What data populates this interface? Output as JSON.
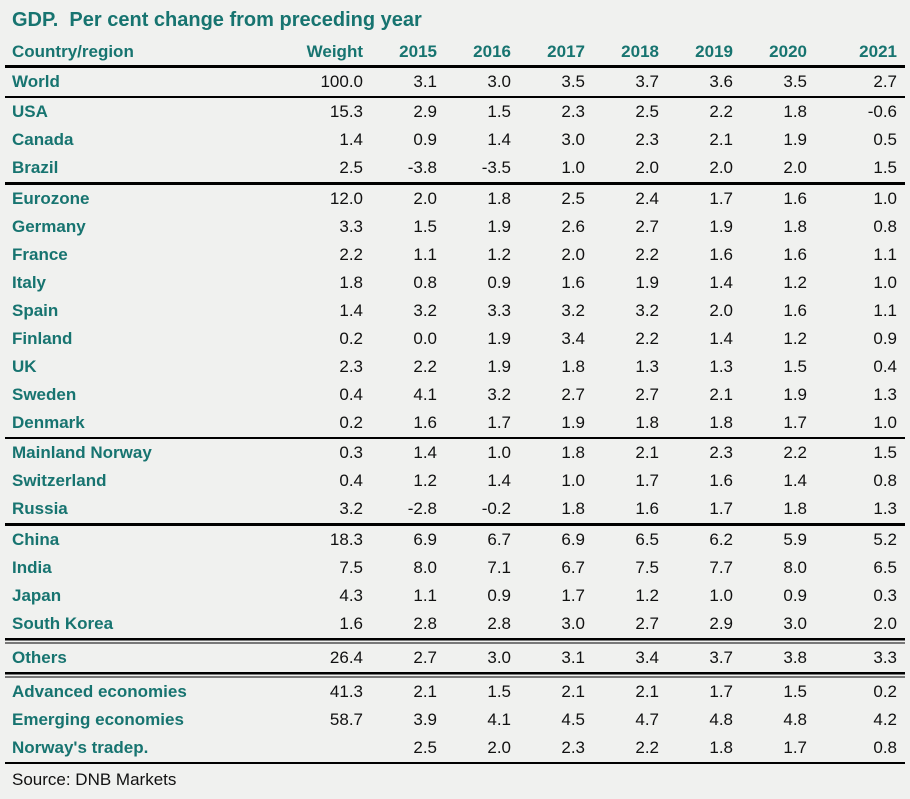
{
  "title": "GDP.  Per cent change from preceding year",
  "source": "Source: DNB Markets",
  "colors": {
    "teal": "#177470",
    "background": "#f0f1ef",
    "number_text": "#111111",
    "rule": "#000000"
  },
  "chart_data": {
    "type": "table",
    "title": "GDP. Per cent change from preceding year",
    "columns": [
      "Country/region",
      "Weight",
      "2015",
      "2016",
      "2017",
      "2018",
      "2019",
      "2020",
      "2021"
    ],
    "rows": [
      {
        "label": "World",
        "indent": 0,
        "rule_above": "thick",
        "values": [
          "100.0",
          "3.1",
          "3.0",
          "3.5",
          "3.7",
          "3.6",
          "3.5",
          "2.7"
        ]
      },
      {
        "label": "USA",
        "indent": 0,
        "rule_above": "thick",
        "values": [
          "15.3",
          "2.9",
          "1.5",
          "2.3",
          "2.5",
          "2.2",
          "1.8",
          "-0.6"
        ]
      },
      {
        "label": "Canada",
        "indent": 0,
        "rule_above": "none",
        "values": [
          "1.4",
          "0.9",
          "1.4",
          "3.0",
          "2.3",
          "2.1",
          "1.9",
          "0.5"
        ]
      },
      {
        "label": "Brazil",
        "indent": 0,
        "rule_above": "none",
        "values": [
          "2.5",
          "-3.8",
          "-3.5",
          "1.0",
          "2.0",
          "2.0",
          "2.0",
          "1.5"
        ]
      },
      {
        "label": "Eurozone",
        "indent": 0,
        "rule_above": "thick",
        "values": [
          "12.0",
          "2.0",
          "1.8",
          "2.5",
          "2.4",
          "1.7",
          "1.6",
          "1.0"
        ]
      },
      {
        "label": "Germany",
        "indent": 2,
        "rule_above": "none",
        "values": [
          "3.3",
          "1.5",
          "1.9",
          "2.6",
          "2.7",
          "1.9",
          "1.8",
          "0.8"
        ]
      },
      {
        "label": "France",
        "indent": 2,
        "rule_above": "none",
        "values": [
          "2.2",
          "1.1",
          "1.2",
          "2.0",
          "2.2",
          "1.6",
          "1.6",
          "1.1"
        ]
      },
      {
        "label": "Italy",
        "indent": 2,
        "rule_above": "none",
        "values": [
          "1.8",
          "0.8",
          "0.9",
          "1.6",
          "1.9",
          "1.4",
          "1.2",
          "1.0"
        ]
      },
      {
        "label": "Spain",
        "indent": 2,
        "rule_above": "none",
        "values": [
          "1.4",
          "3.2",
          "3.3",
          "3.2",
          "3.2",
          "2.0",
          "1.6",
          "1.1"
        ]
      },
      {
        "label": "Finland",
        "indent": 2,
        "rule_above": "none",
        "values": [
          "0.2",
          "0.0",
          "1.9",
          "3.4",
          "2.2",
          "1.4",
          "1.2",
          "0.9"
        ]
      },
      {
        "label": "UK",
        "indent": 0,
        "rule_above": "none",
        "values": [
          "2.3",
          "2.2",
          "1.9",
          "1.8",
          "1.3",
          "1.3",
          "1.5",
          "0.4"
        ]
      },
      {
        "label": "Sweden",
        "indent": 0,
        "rule_above": "none",
        "values": [
          "0.4",
          "4.1",
          "3.2",
          "2.7",
          "2.7",
          "2.1",
          "1.9",
          "1.3"
        ]
      },
      {
        "label": "Denmark",
        "indent": 0,
        "rule_above": "none",
        "values": [
          "0.2",
          "1.6",
          "1.7",
          "1.9",
          "1.8",
          "1.8",
          "1.7",
          "1.0"
        ]
      },
      {
        "label": "Mainland Norway",
        "indent": 0,
        "rule_above": "thick",
        "values": [
          "0.3",
          "1.4",
          "1.0",
          "1.8",
          "2.1",
          "2.3",
          "2.2",
          "1.5"
        ]
      },
      {
        "label": "Switzerland",
        "indent": 1,
        "rule_above": "none",
        "values": [
          "0.4",
          "1.2",
          "1.4",
          "1.0",
          "1.7",
          "1.6",
          "1.4",
          "0.8"
        ]
      },
      {
        "label": "Russia",
        "indent": 1,
        "rule_above": "none",
        "values": [
          "3.2",
          "-2.8",
          "-0.2",
          "1.8",
          "1.6",
          "1.7",
          "1.8",
          "1.3"
        ]
      },
      {
        "label": "China",
        "indent": 0,
        "rule_above": "thick",
        "values": [
          "18.3",
          "6.9",
          "6.7",
          "6.9",
          "6.5",
          "6.2",
          "5.9",
          "5.2"
        ]
      },
      {
        "label": "India",
        "indent": 0,
        "rule_above": "none",
        "values": [
          "7.5",
          "8.0",
          "7.1",
          "6.7",
          "7.5",
          "7.7",
          "8.0",
          "6.5"
        ]
      },
      {
        "label": "Japan",
        "indent": 0,
        "rule_above": "none",
        "values": [
          "4.3",
          "1.1",
          "0.9",
          "1.7",
          "1.2",
          "1.0",
          "0.9",
          "0.3"
        ]
      },
      {
        "label": "South Korea",
        "indent": 0,
        "rule_above": "none",
        "values": [
          "1.6",
          "2.8",
          "2.8",
          "3.0",
          "2.7",
          "2.9",
          "3.0",
          "2.0"
        ]
      },
      {
        "label": "Others",
        "indent": 0,
        "rule_above": "double",
        "values": [
          "26.4",
          "2.7",
          "3.0",
          "3.1",
          "3.4",
          "3.7",
          "3.8",
          "3.3"
        ]
      },
      {
        "label": "Advanced economies",
        "indent": 0,
        "rule_above": "double",
        "values": [
          "41.3",
          "2.1",
          "1.5",
          "2.1",
          "2.1",
          "1.7",
          "1.5",
          "0.2"
        ]
      },
      {
        "label": "Emerging economies",
        "indent": 0,
        "rule_above": "none",
        "values": [
          "58.7",
          "3.9",
          "4.1",
          "4.5",
          "4.7",
          "4.8",
          "4.8",
          "4.2"
        ]
      },
      {
        "label": "Norway's tradep.",
        "indent": 0,
        "rule_above": "none",
        "values": [
          "",
          "2.5",
          "2.0",
          "2.3",
          "2.2",
          "1.8",
          "1.7",
          "0.8"
        ]
      }
    ],
    "bottom_rule": "thick"
  }
}
